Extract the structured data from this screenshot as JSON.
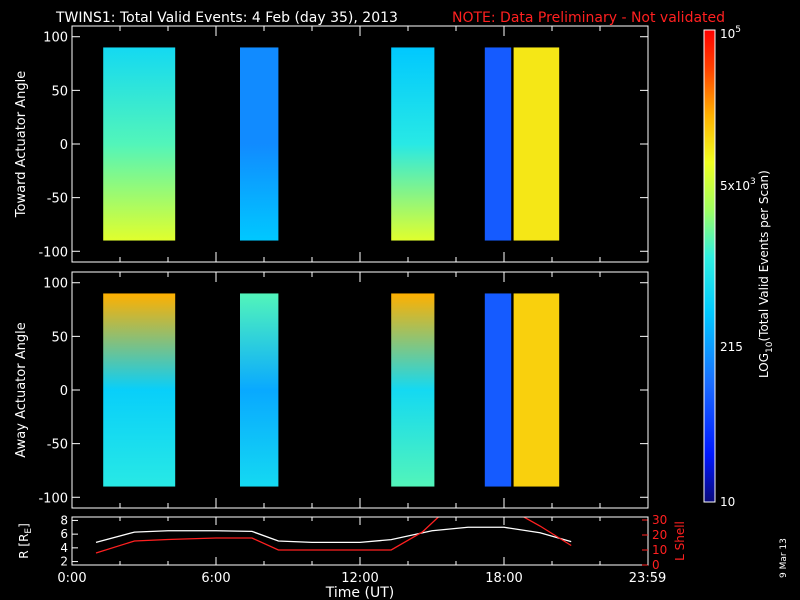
{
  "header": {
    "title": "TWINS1: Total Valid Events:  4 Feb (day  35), 2013",
    "note": "NOTE: Data Preliminary - Not validated",
    "note_color": "#ff2020"
  },
  "colorbar": {
    "label": "LOG10(Total Valid Events per Scan)",
    "label_main": "LOG",
    "label_sub": "10",
    "label_rest": "(Total Valid  Events per Scan)",
    "tick_top_base": "10",
    "tick_top_exp": "5",
    "tick_5e3_base": "5x10",
    "tick_5e3_exp": "3",
    "tick_215": "215",
    "tick_10": "10"
  },
  "footer": {
    "xlabel": "Time (UT)",
    "date_stamp": "9 Mar 13"
  },
  "chart_data": [
    {
      "type": "heatmap",
      "panel": "top",
      "ylabel": "Toward Actuator Angle",
      "xlim": [
        0,
        24
      ],
      "ylim": [
        -110,
        110
      ],
      "yticks": [
        "100",
        "50",
        "0",
        "-50",
        "-100"
      ],
      "ytick_values": [
        100,
        50,
        0,
        -50,
        -100
      ],
      "angle_range": [
        -90,
        90
      ],
      "scale": "log",
      "crange": [
        10,
        100000
      ],
      "segments": [
        {
          "start": 1.3,
          "end": 4.3,
          "level_top": 0.45,
          "level_mid": 0.55,
          "level_bottom": 0.7
        },
        {
          "start": 7.0,
          "end": 8.6,
          "level_top": 0.3,
          "level_mid": 0.3,
          "level_bottom": 0.4
        },
        {
          "start": 13.3,
          "end": 15.1,
          "level_top": 0.4,
          "level_mid": 0.5,
          "level_bottom": 0.7
        },
        {
          "start": 17.2,
          "end": 18.3,
          "level_top": 0.22,
          "level_mid": 0.22,
          "level_bottom": 0.22
        },
        {
          "start": 18.4,
          "end": 20.3,
          "level_top": 0.75,
          "level_mid": 0.75,
          "level_bottom": 0.75
        }
      ]
    },
    {
      "type": "heatmap",
      "panel": "bottom",
      "ylabel": "Away Actuator Angle",
      "xlim": [
        0,
        24
      ],
      "ylim": [
        -110,
        110
      ],
      "yticks": [
        "100",
        "50",
        "0",
        "-50",
        "-100"
      ],
      "ytick_values": [
        100,
        50,
        0,
        -50,
        -100
      ],
      "angle_range": [
        -90,
        90
      ],
      "scale": "log",
      "crange": [
        10,
        100000
      ],
      "segments": [
        {
          "start": 1.3,
          "end": 4.3,
          "level_top": 0.82,
          "level_mid": 0.42,
          "level_bottom": 0.5
        },
        {
          "start": 7.0,
          "end": 8.6,
          "level_top": 0.55,
          "level_mid": 0.35,
          "level_bottom": 0.45
        },
        {
          "start": 13.3,
          "end": 15.1,
          "level_top": 0.82,
          "level_mid": 0.45,
          "level_bottom": 0.55
        },
        {
          "start": 17.2,
          "end": 18.3,
          "level_top": 0.22,
          "level_mid": 0.22,
          "level_bottom": 0.22
        },
        {
          "start": 18.4,
          "end": 20.3,
          "level_top": 0.78,
          "level_mid": 0.78,
          "level_bottom": 0.78
        }
      ]
    },
    {
      "type": "line",
      "panel": "ephemeris",
      "xlabel": "Time (UT)",
      "xticks": [
        "0:00",
        "6:00",
        "12:00",
        "18:00",
        "23:59"
      ],
      "xtick_values": [
        0,
        6,
        12,
        18,
        23.98
      ],
      "xlim": [
        0,
        24
      ],
      "ylabel_left": "R [RE]",
      "ylabel_left_main": "R [R",
      "ylabel_left_sub": "E",
      "ylabel_left_end": "]",
      "yticks_left": [
        "2",
        "4",
        "6",
        "8"
      ],
      "ylim_left": [
        1.5,
        8.5
      ],
      "ylabel_right": "L Shell",
      "yticks_right": [
        "0",
        "10",
        "20",
        "30"
      ],
      "ylim_right": [
        0,
        32
      ],
      "right_axis_color": "#ff2020",
      "series": [
        {
          "axis": "left",
          "color": "#ffffff",
          "x": [
            1.0,
            2.6,
            4.0,
            6.0,
            7.5,
            8.6,
            10.0,
            12.0,
            13.3,
            15.0,
            16.5,
            18.0,
            19.5,
            20.8
          ],
          "y": [
            4.8,
            6.3,
            6.5,
            6.5,
            6.4,
            5.0,
            4.8,
            4.8,
            5.2,
            6.5,
            7.0,
            7.0,
            6.2,
            4.9
          ]
        },
        {
          "axis": "right",
          "color": "#ff2020",
          "x": [
            1.0,
            2.6,
            4.0,
            6.0,
            7.5,
            8.6,
            10.0,
            12.0,
            13.3,
            14.6,
            15.4,
            18.6,
            19.5,
            20.8
          ],
          "y": [
            8,
            16,
            17,
            18,
            18,
            10,
            10,
            10,
            10,
            22,
            34,
            34,
            26,
            13
          ]
        }
      ]
    }
  ]
}
